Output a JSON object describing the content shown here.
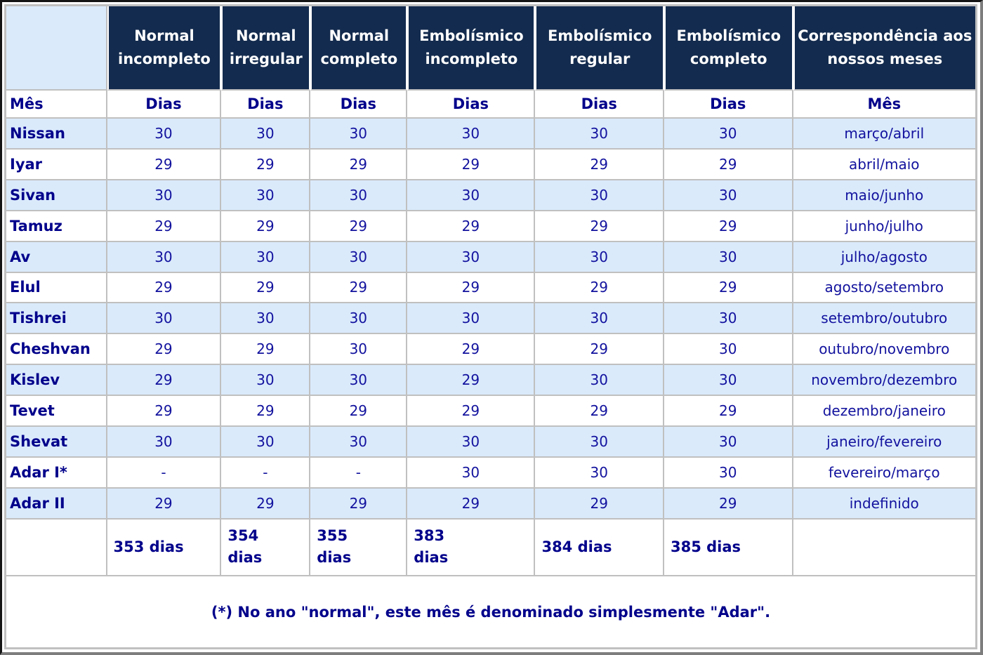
{
  "table": {
    "corner_cell": "",
    "year_type_headers": [
      "Normal incompleto",
      "Normal irregular",
      "Normal completo",
      "Embolísmico incompleto",
      "Embolísmico regular",
      "Embolísmico completo",
      "Correspondência aos nossos meses"
    ],
    "subheader": {
      "month_label": "Mês",
      "days_label": "Dias",
      "correspondence_label": "Mês"
    },
    "rows": [
      {
        "month": "Nissan",
        "days": [
          "30",
          "30",
          "30",
          "30",
          "30",
          "30"
        ],
        "correspondence": "março/abril",
        "shaded": true
      },
      {
        "month": "Iyar",
        "days": [
          "29",
          "29",
          "29",
          "29",
          "29",
          "29"
        ],
        "correspondence": "abril/maio",
        "shaded": false
      },
      {
        "month": "Sivan",
        "days": [
          "30",
          "30",
          "30",
          "30",
          "30",
          "30"
        ],
        "correspondence": "maio/junho",
        "shaded": true
      },
      {
        "month": "Tamuz",
        "days": [
          "29",
          "29",
          "29",
          "29",
          "29",
          "29"
        ],
        "correspondence": "junho/julho",
        "shaded": false
      },
      {
        "month": "Av",
        "days": [
          "30",
          "30",
          "30",
          "30",
          "30",
          "30"
        ],
        "correspondence": "julho/agosto",
        "shaded": true
      },
      {
        "month": "Elul",
        "days": [
          "29",
          "29",
          "29",
          "29",
          "29",
          "29"
        ],
        "correspondence": "agosto/setembro",
        "shaded": false
      },
      {
        "month": "Tishrei",
        "days": [
          "30",
          "30",
          "30",
          "30",
          "30",
          "30"
        ],
        "correspondence": "setembro/outubro",
        "shaded": true
      },
      {
        "month": "Cheshvan",
        "days": [
          "29",
          "29",
          "30",
          "29",
          "29",
          "30"
        ],
        "correspondence": "outubro/novembro",
        "shaded": false
      },
      {
        "month": "Kislev",
        "days": [
          "29",
          "30",
          "30",
          "29",
          "30",
          "30"
        ],
        "correspondence": "novembro/dezembro",
        "shaded": true
      },
      {
        "month": "Tevet",
        "days": [
          "29",
          "29",
          "29",
          "29",
          "29",
          "29"
        ],
        "correspondence": "dezembro/janeiro",
        "shaded": false
      },
      {
        "month": "Shevat",
        "days": [
          "30",
          "30",
          "30",
          "30",
          "30",
          "30"
        ],
        "correspondence": "janeiro/fevereiro",
        "shaded": true
      },
      {
        "month": "Adar I*",
        "days": [
          "-",
          "-",
          "-",
          "30",
          "30",
          "30"
        ],
        "correspondence": "fevereiro/março",
        "shaded": false
      },
      {
        "month": "Adar II",
        "days": [
          "29",
          "29",
          "29",
          "29",
          "29",
          "29"
        ],
        "correspondence": "indefinido",
        "shaded": true
      }
    ],
    "totals": [
      "353 dias",
      "354\ndias",
      "355\ndias",
      "383\ndias",
      "384 dias",
      "385 dias"
    ],
    "footnote": "(*) No ano \"normal\", este mês é denominado simplesmente \"Adar\"."
  },
  "colors": {
    "header_bg": "#132B4E",
    "row_shaded": "#DAEAFB",
    "grid": "#C0C0C0",
    "text_bold": "#00008B",
    "text": "#12129E"
  }
}
